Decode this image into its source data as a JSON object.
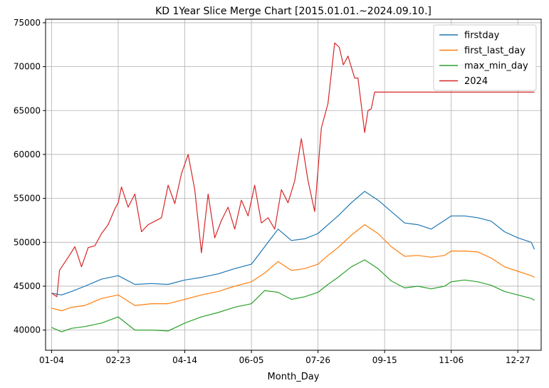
{
  "chart_data": {
    "type": "line",
    "title": "KD 1Year Slice Merge Chart [2015.01.01.~2024.09.10.]",
    "xlabel": "Month_Day",
    "ylabel": "",
    "x_tick_labels": [
      "01-04",
      "02-23",
      "04-14",
      "06-05",
      "07-26",
      "09-15",
      "11-06",
      "12-27"
    ],
    "y_ticks": [
      40000,
      45000,
      50000,
      55000,
      60000,
      65000,
      70000,
      75000
    ],
    "ylim": [
      37700,
      75400
    ],
    "xlim": [
      0.91,
      8.35
    ],
    "grid": true,
    "legend_position": "top-right",
    "series": [
      {
        "name": "firstday",
        "color": "#1f77b4",
        "x": [
          1.0,
          1.15,
          1.3,
          1.5,
          1.75,
          2.0,
          2.25,
          2.5,
          2.75,
          3.0,
          3.25,
          3.5,
          3.75,
          4.0,
          4.2,
          4.4,
          4.6,
          4.8,
          5.0,
          5.15,
          5.3,
          5.5,
          5.7,
          5.9,
          6.1,
          6.3,
          6.5,
          6.7,
          6.9,
          7.0,
          7.2,
          7.4,
          7.6,
          7.8,
          8.0,
          8.2,
          8.25
        ],
        "y": [
          44200,
          44000,
          44400,
          45000,
          45800,
          46200,
          45200,
          45300,
          45200,
          45700,
          46000,
          46400,
          47000,
          47500,
          49500,
          51500,
          50200,
          50400,
          51000,
          52000,
          53000,
          54500,
          55800,
          54800,
          53500,
          52200,
          52000,
          51500,
          52500,
          53000,
          53000,
          52800,
          52400,
          51200,
          50500,
          50000,
          49200
        ]
      },
      {
        "name": "first_last_day",
        "color": "#ff7f0e",
        "x": [
          1.0,
          1.15,
          1.3,
          1.5,
          1.75,
          2.0,
          2.25,
          2.5,
          2.75,
          3.0,
          3.25,
          3.5,
          3.75,
          4.0,
          4.2,
          4.4,
          4.6,
          4.8,
          5.0,
          5.15,
          5.3,
          5.5,
          5.7,
          5.9,
          6.1,
          6.3,
          6.5,
          6.7,
          6.9,
          7.0,
          7.2,
          7.4,
          7.6,
          7.8,
          8.0,
          8.2,
          8.25
        ],
        "y": [
          42500,
          42200,
          42600,
          42800,
          43600,
          44000,
          42800,
          43000,
          43000,
          43500,
          44000,
          44400,
          45000,
          45500,
          46500,
          47800,
          46800,
          47000,
          47500,
          48500,
          49400,
          50800,
          52000,
          51000,
          49500,
          48400,
          48500,
          48300,
          48500,
          49000,
          49000,
          48900,
          48200,
          47200,
          46700,
          46200,
          46000
        ]
      },
      {
        "name": "max_min_day",
        "color": "#2ca02c",
        "x": [
          1.0,
          1.15,
          1.3,
          1.5,
          1.75,
          2.0,
          2.25,
          2.5,
          2.75,
          3.0,
          3.25,
          3.5,
          3.75,
          4.0,
          4.2,
          4.4,
          4.6,
          4.8,
          5.0,
          5.15,
          5.3,
          5.5,
          5.7,
          5.9,
          6.1,
          6.3,
          6.5,
          6.7,
          6.9,
          7.0,
          7.2,
          7.4,
          7.6,
          7.8,
          8.0,
          8.2,
          8.25
        ],
        "y": [
          40300,
          39800,
          40200,
          40400,
          40800,
          41500,
          40000,
          40000,
          39900,
          40800,
          41500,
          42000,
          42600,
          43000,
          44500,
          44300,
          43500,
          43800,
          44300,
          45200,
          46000,
          47200,
          48000,
          47000,
          45600,
          44800,
          45000,
          44700,
          45000,
          45500,
          45700,
          45500,
          45100,
          44400,
          44000,
          43600,
          43400
        ]
      },
      {
        "name": "2024",
        "color": "#d62728",
        "x": [
          1.0,
          1.08,
          1.12,
          1.18,
          1.25,
          1.35,
          1.45,
          1.55,
          1.65,
          1.75,
          1.85,
          1.95,
          2.0,
          2.05,
          2.15,
          2.25,
          2.35,
          2.45,
          2.55,
          2.65,
          2.75,
          2.85,
          2.95,
          3.05,
          3.15,
          3.25,
          3.35,
          3.45,
          3.55,
          3.65,
          3.75,
          3.85,
          3.95,
          4.05,
          4.15,
          4.25,
          4.35,
          4.45,
          4.55,
          4.65,
          4.75,
          4.85,
          4.95,
          5.05,
          5.15,
          5.25,
          5.32,
          5.38,
          5.45,
          5.55,
          5.6,
          5.7,
          5.75,
          5.8,
          5.85,
          5.9,
          6.0,
          6.1,
          6.2,
          6.3,
          6.4,
          6.5,
          8.25
        ],
        "y": [
          44200,
          43800,
          46800,
          47500,
          48300,
          49500,
          47200,
          49400,
          49600,
          51000,
          52000,
          53800,
          54500,
          56300,
          54000,
          55500,
          51200,
          52000,
          52400,
          52800,
          56500,
          54400,
          57800,
          60000,
          56000,
          48800,
          55500,
          50500,
          52500,
          54000,
          51500,
          54800,
          53000,
          56500,
          52200,
          52800,
          51500,
          56000,
          54500,
          57000,
          61800,
          57000,
          53500,
          63000,
          65800,
          72700,
          72200,
          70200,
          71200,
          68700,
          68700,
          62500,
          65000,
          65200,
          67100,
          67100,
          67100,
          67100,
          67100,
          67100,
          67100,
          67100,
          67100
        ]
      }
    ]
  }
}
